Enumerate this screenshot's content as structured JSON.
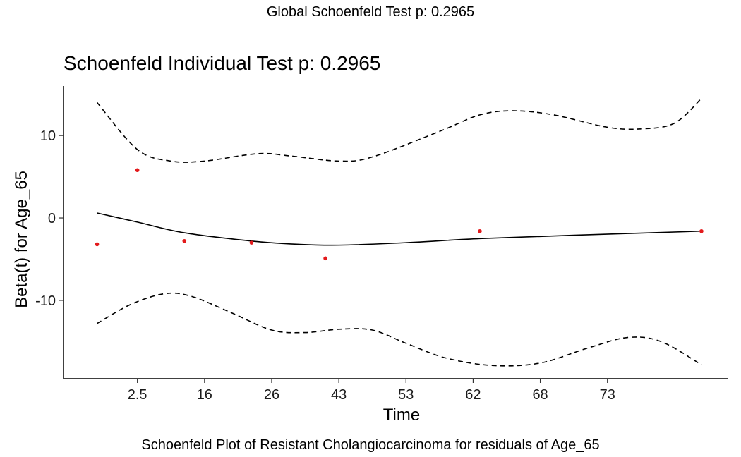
{
  "global_title": "Global Schoenfeld Test p: 0.2965",
  "caption": "Schoenfeld Plot of Resistant Cholangiocarcinoma for residuals of Age_65",
  "colors": {
    "points": "#e31a1c",
    "lines": "#000000",
    "background": "#ffffff"
  },
  "chart_data": {
    "type": "scatter",
    "title": "Schoenfeld Individual Test p: 0.2965",
    "xlabel": "Time",
    "ylabel": "Beta(t) for Age_65",
    "x_tick_labels": [
      "2.5",
      "16",
      "26",
      "43",
      "53",
      "62",
      "68",
      "73"
    ],
    "x_tick_positions": [
      1,
      2,
      3,
      4,
      5,
      6,
      7,
      8
    ],
    "xlim": [
      -0.1,
      9.8
    ],
    "y_ticks": [
      -10,
      0,
      10
    ],
    "ylim": [
      -19.5,
      16
    ],
    "grid": false,
    "points": [
      {
        "x": 0.4,
        "y": -3.2
      },
      {
        "x": 1.0,
        "y": 5.8
      },
      {
        "x": 1.7,
        "y": -2.8
      },
      {
        "x": 2.7,
        "y": -3.0
      },
      {
        "x": 3.8,
        "y": -4.9
      },
      {
        "x": 6.1,
        "y": -1.6
      },
      {
        "x": 9.4,
        "y": -1.6
      }
    ],
    "fit_line": [
      {
        "x": 0.4,
        "y": 0.6
      },
      {
        "x": 1.0,
        "y": -0.5
      },
      {
        "x": 1.7,
        "y": -1.8
      },
      {
        "x": 2.7,
        "y": -2.8
      },
      {
        "x": 3.4,
        "y": -3.2
      },
      {
        "x": 4.0,
        "y": -3.3
      },
      {
        "x": 5.0,
        "y": -3.0
      },
      {
        "x": 6.1,
        "y": -2.5
      },
      {
        "x": 7.5,
        "y": -2.1
      },
      {
        "x": 9.4,
        "y": -1.6
      }
    ],
    "upper_band": [
      {
        "x": 0.4,
        "y": 14.0
      },
      {
        "x": 1.0,
        "y": 8.3
      },
      {
        "x": 1.5,
        "y": 6.9
      },
      {
        "x": 2.0,
        "y": 6.9
      },
      {
        "x": 2.8,
        "y": 7.8
      },
      {
        "x": 3.3,
        "y": 7.5
      },
      {
        "x": 4.0,
        "y": 6.9
      },
      {
        "x": 4.5,
        "y": 7.4
      },
      {
        "x": 5.5,
        "y": 10.5
      },
      {
        "x": 6.1,
        "y": 12.5
      },
      {
        "x": 6.6,
        "y": 13.0
      },
      {
        "x": 7.2,
        "y": 12.5
      },
      {
        "x": 8.0,
        "y": 11.0
      },
      {
        "x": 8.5,
        "y": 10.8
      },
      {
        "x": 9.0,
        "y": 11.5
      },
      {
        "x": 9.4,
        "y": 14.5
      }
    ],
    "lower_band": [
      {
        "x": 0.4,
        "y": -12.8
      },
      {
        "x": 0.9,
        "y": -10.5
      },
      {
        "x": 1.4,
        "y": -9.2
      },
      {
        "x": 1.8,
        "y": -9.5
      },
      {
        "x": 2.4,
        "y": -11.5
      },
      {
        "x": 3.0,
        "y": -13.6
      },
      {
        "x": 3.5,
        "y": -13.9
      },
      {
        "x": 4.0,
        "y": -13.5
      },
      {
        "x": 4.5,
        "y": -13.6
      },
      {
        "x": 5.0,
        "y": -15.2
      },
      {
        "x": 5.6,
        "y": -17.0
      },
      {
        "x": 6.3,
        "y": -17.9
      },
      {
        "x": 7.0,
        "y": -17.6
      },
      {
        "x": 7.7,
        "y": -15.8
      },
      {
        "x": 8.3,
        "y": -14.5
      },
      {
        "x": 8.8,
        "y": -15.0
      },
      {
        "x": 9.4,
        "y": -17.8
      }
    ]
  }
}
